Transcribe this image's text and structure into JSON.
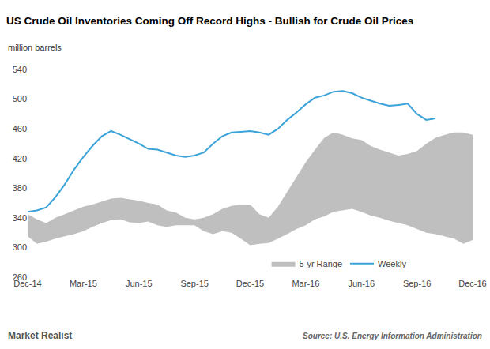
{
  "chart_data": {
    "type": "line",
    "title": "US Crude Oil Inventories Coming Off Record Highs - Bullish for Crude Oil Prices",
    "subtitle": "million barrels",
    "annotations": [
      "Market Realist",
      "Source: U.S. Energy Information Administration"
    ],
    "categories": [
      "Dec-14",
      null,
      null,
      null,
      null,
      null,
      "Mar-15",
      null,
      null,
      null,
      null,
      null,
      "Jun-15",
      null,
      null,
      null,
      null,
      null,
      "Sep-15",
      null,
      null,
      null,
      null,
      null,
      "Dec-15",
      null,
      null,
      null,
      null,
      null,
      "Mar-16",
      null,
      null,
      null,
      null,
      null,
      "Jun-16",
      null,
      null,
      null,
      null,
      null,
      "Sep-16",
      null,
      null,
      null,
      null,
      null,
      "Dec-16"
    ],
    "series": [
      {
        "name": "5-yr Range",
        "type": "area",
        "color": "#bfbfbf",
        "low": [
          315,
          305,
          308,
          312,
          315,
          318,
          322,
          328,
          333,
          337,
          338,
          334,
          333,
          335,
          330,
          328,
          330,
          330,
          330,
          322,
          318,
          322,
          320,
          312,
          303,
          305,
          306,
          312,
          318,
          325,
          330,
          338,
          342,
          348,
          350,
          352,
          348,
          343,
          340,
          336,
          333,
          330,
          325,
          320,
          318,
          315,
          312,
          305,
          310
        ],
        "high": [
          345,
          338,
          333,
          340,
          345,
          350,
          355,
          358,
          362,
          366,
          367,
          365,
          363,
          360,
          358,
          350,
          347,
          340,
          338,
          340,
          345,
          352,
          356,
          358,
          358,
          345,
          340,
          355,
          375,
          395,
          415,
          432,
          448,
          455,
          452,
          447,
          445,
          437,
          432,
          428,
          424,
          426,
          430,
          440,
          448,
          452,
          455,
          455,
          452
        ]
      },
      {
        "name": "Weekly",
        "type": "line",
        "color": "#3ba3d9",
        "values": [
          348,
          350,
          354,
          368,
          385,
          405,
          422,
          437,
          450,
          457,
          452,
          446,
          440,
          433,
          432,
          428,
          424,
          422,
          424,
          428,
          440,
          450,
          455,
          456,
          457,
          455,
          452,
          460,
          472,
          482,
          493,
          502,
          505,
          510,
          511,
          508,
          502,
          498,
          494,
          491,
          492,
          494,
          480,
          472,
          474,
          null,
          null,
          null,
          null
        ]
      }
    ],
    "ylim": [
      260,
      540
    ],
    "yticks": [
      260,
      300,
      340,
      380,
      420,
      460,
      500,
      540
    ],
    "grid": false,
    "legend": "bottom"
  }
}
